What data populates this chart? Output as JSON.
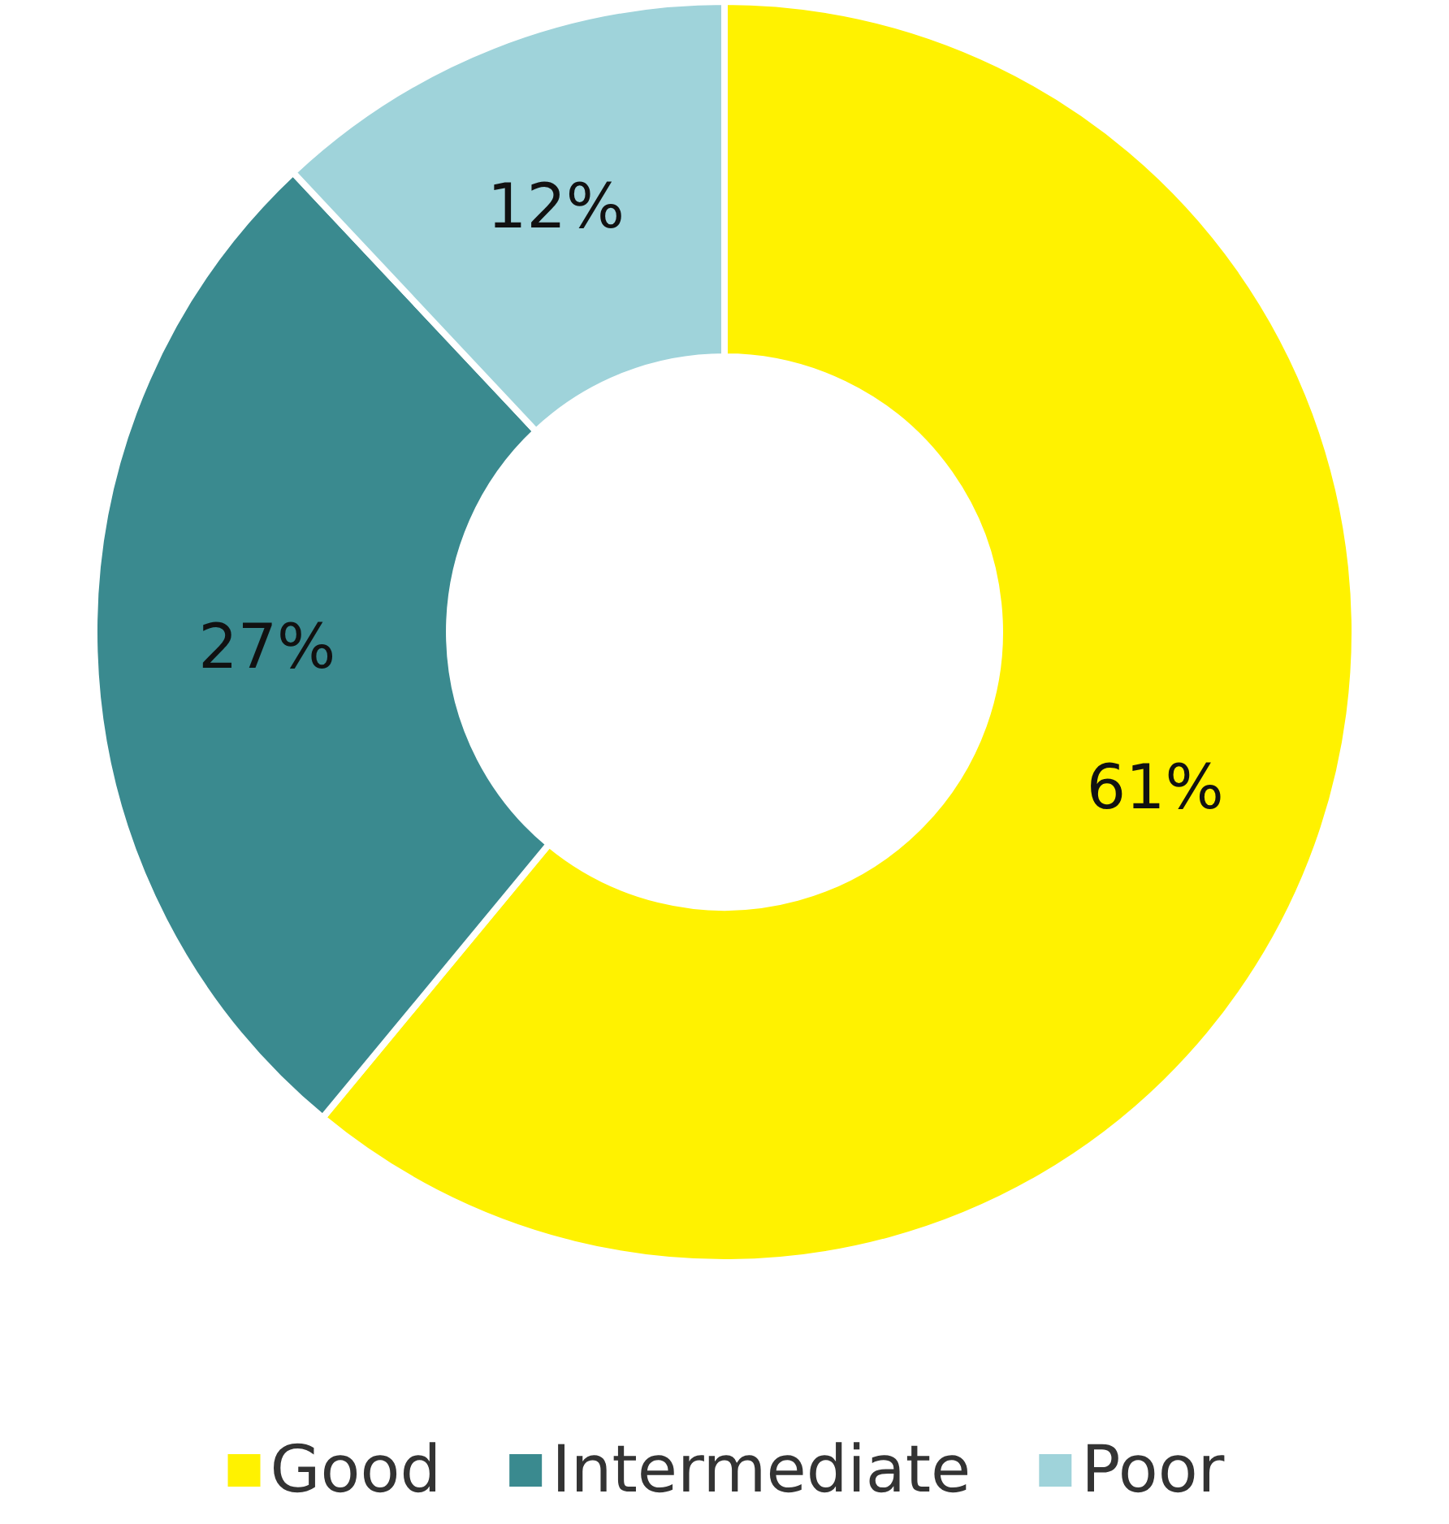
{
  "chart_data": {
    "type": "donut",
    "categories": [
      "Good",
      "Intermediate",
      "Poor"
    ],
    "values": [
      61,
      27,
      12
    ],
    "colors": [
      "#fff200",
      "#3a8a8f",
      "#9fd3da"
    ],
    "value_labels": [
      "61%",
      "27%",
      "12%"
    ],
    "legend": "bottom"
  }
}
